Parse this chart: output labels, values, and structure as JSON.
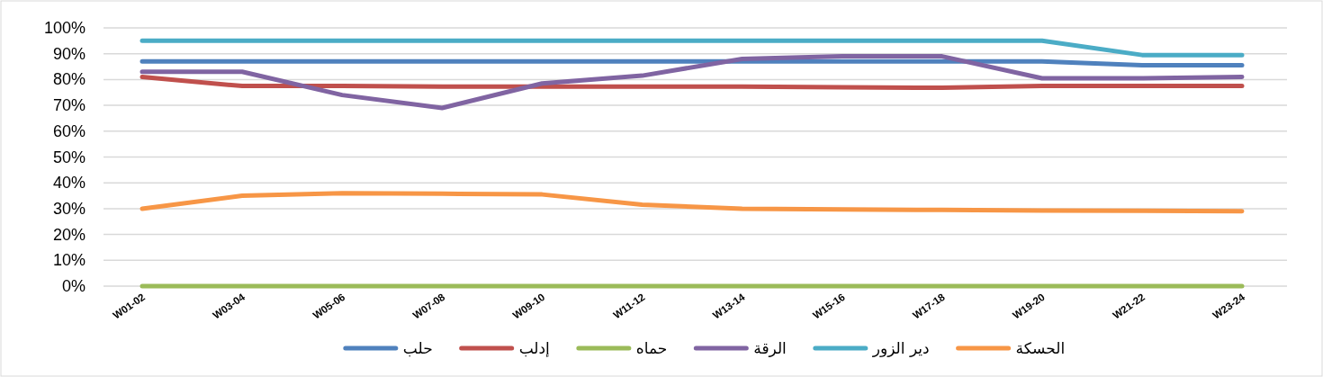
{
  "chart_data": {
    "type": "line",
    "categories": [
      "W01-02",
      "W03-04",
      "W05-06",
      "W07-08",
      "W09-10",
      "W11-12",
      "W13-14",
      "W15-16",
      "W17-18",
      "W19-20",
      "W21-22",
      "W23-24"
    ],
    "series": [
      {
        "name": "حلب",
        "color": "#4f81bd",
        "values": [
          87,
          87,
          87,
          87,
          87,
          87,
          87,
          87,
          87,
          87,
          85.5,
          85.5
        ]
      },
      {
        "name": "إدلب",
        "color": "#c0504d",
        "values": [
          81,
          77.5,
          77.5,
          77.3,
          77.3,
          77.3,
          77.3,
          77,
          76.8,
          77.5,
          77.5,
          77.5
        ]
      },
      {
        "name": "حماه",
        "color": "#9bbb59",
        "values": [
          0,
          0,
          0,
          0,
          0,
          0,
          0,
          0,
          0,
          0,
          0,
          0
        ]
      },
      {
        "name": "الرقة",
        "color": "#8064a2",
        "values": [
          83,
          83,
          74,
          69,
          78.5,
          81.5,
          88,
          89,
          89,
          80.5,
          80.5,
          81
        ]
      },
      {
        "name": "دير الزور",
        "color": "#4bacc6",
        "values": [
          95,
          95,
          95,
          95,
          95,
          95,
          95,
          95,
          95,
          95,
          89.5,
          89.5
        ]
      },
      {
        "name": "الحسكة",
        "color": "#f79646",
        "values": [
          30,
          35,
          36,
          35.8,
          35.5,
          31.5,
          30,
          29.7,
          29.5,
          29.3,
          29.2,
          29
        ]
      }
    ],
    "ylim": [
      0,
      100
    ],
    "yticks": [
      {
        "value": 0,
        "label": "0%"
      },
      {
        "value": 10,
        "label": "10%"
      },
      {
        "value": 20,
        "label": "20%"
      },
      {
        "value": 30,
        "label": "30%"
      },
      {
        "value": 40,
        "label": "40%"
      },
      {
        "value": 50,
        "label": "50%"
      },
      {
        "value": 60,
        "label": "60%"
      },
      {
        "value": 70,
        "label": "70%"
      },
      {
        "value": 80,
        "label": "80%"
      },
      {
        "value": 90,
        "label": "90%"
      },
      {
        "value": 100,
        "label": "100%"
      }
    ],
    "grid": "y",
    "legend": "bottom",
    "marker": "none",
    "line_style": "solid"
  }
}
